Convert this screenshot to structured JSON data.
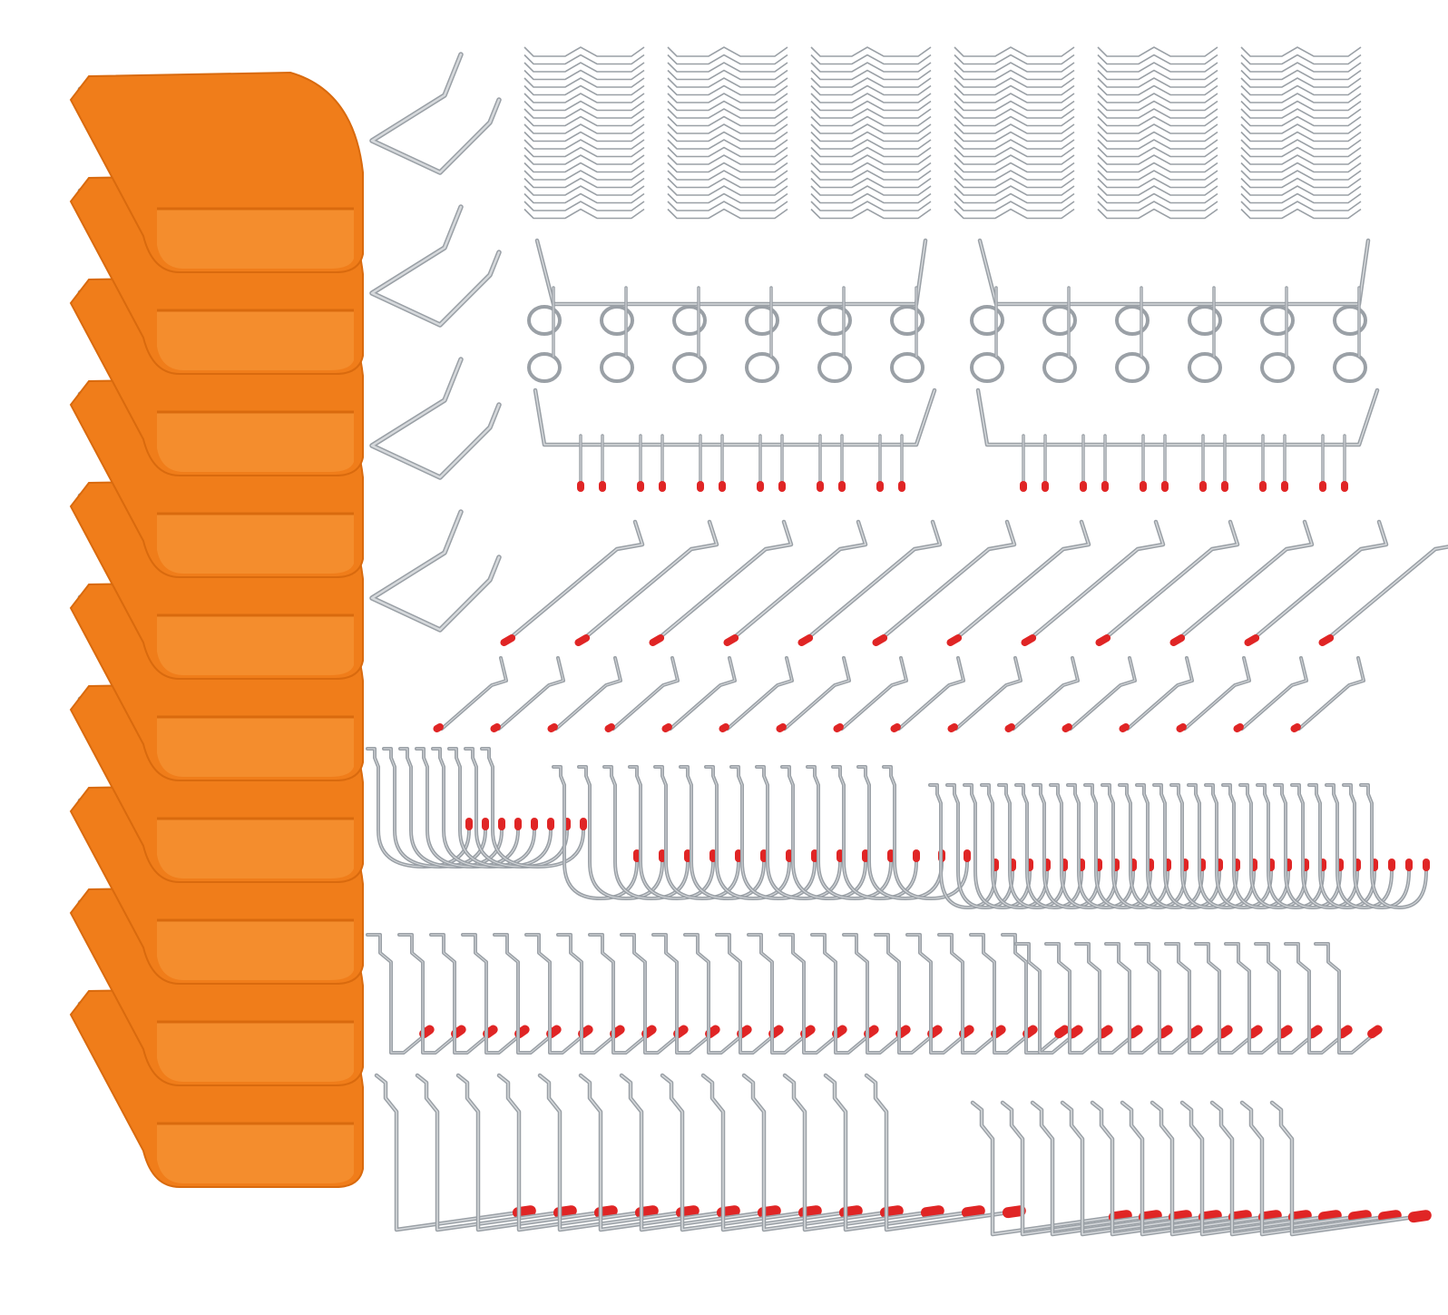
{
  "colors": {
    "background": "#ffffff",
    "bin_orange": "#f07d1a",
    "bin_shadow": "#d96a0e",
    "bin_highlight": "#f89a3e",
    "steel": "#9aa0a6",
    "steel_light": "#d6d9dc",
    "tip_red": "#e02525"
  },
  "groups": [
    {
      "name": "storage-bins",
      "kind": "bin",
      "count": 10
    },
    {
      "name": "retaining-clips",
      "kind": "wave-clip",
      "count": 6
    },
    {
      "name": "single-hook-holders",
      "kind": "v-holder",
      "count": 4
    },
    {
      "name": "ring-holders",
      "kind": "ring-rack",
      "count": 2
    },
    {
      "name": "multi-hook-racks",
      "kind": "multi-hook-rack",
      "count": 2
    },
    {
      "name": "long-straight-hooks",
      "kind": "long-hook",
      "count": 12
    },
    {
      "name": "double-prong-hooks",
      "kind": "short-hook",
      "count": 16
    },
    {
      "name": "j-hooks-large",
      "kind": "j-hook",
      "count": 8
    },
    {
      "name": "j-hooks-medium",
      "kind": "j-hook",
      "count": 14
    },
    {
      "name": "j-hooks-small",
      "kind": "j-hook",
      "count": 26
    },
    {
      "name": "l-hooks-medium",
      "kind": "l-hook",
      "count": 21
    },
    {
      "name": "l-hooks-small",
      "kind": "l-hook",
      "count": 11
    },
    {
      "name": "straight-hooks-large",
      "kind": "straight-hook",
      "count": 13
    },
    {
      "name": "straight-hooks-small",
      "kind": "straight-hook",
      "count": 11
    }
  ]
}
